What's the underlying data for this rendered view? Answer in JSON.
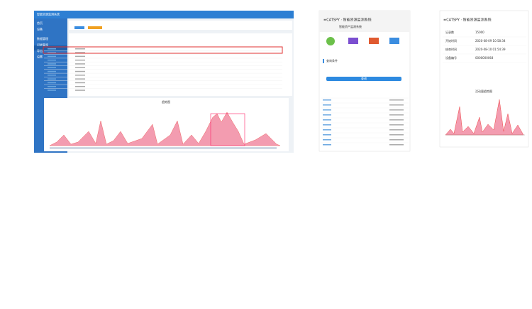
{
  "desktop": {
    "title": "智能资源监测系统",
    "chart_title": "趋势图",
    "menu": [
      "首页",
      "设备",
      "数据管理",
      "记录查询",
      "导出",
      "设置"
    ]
  },
  "phone_list": {
    "title": "≡CATSPY · 智能资源监测系统",
    "subtitle": "智能资产监测系统",
    "section": "查询条件",
    "button": "查询"
  },
  "phone_detail": {
    "title": "≡CATSPY · 智能资源监测系统",
    "chart_title": "活动量趋势图",
    "fields": [
      {
        "label": "记录数",
        "value": "15000"
      },
      {
        "label": "开始时间",
        "value": "2020-08-09 10:58:34"
      },
      {
        "label": "结束时间",
        "value": "2020-08-10 01:54:39"
      },
      {
        "label": "设备编号",
        "value": "0000000064"
      }
    ]
  }
}
